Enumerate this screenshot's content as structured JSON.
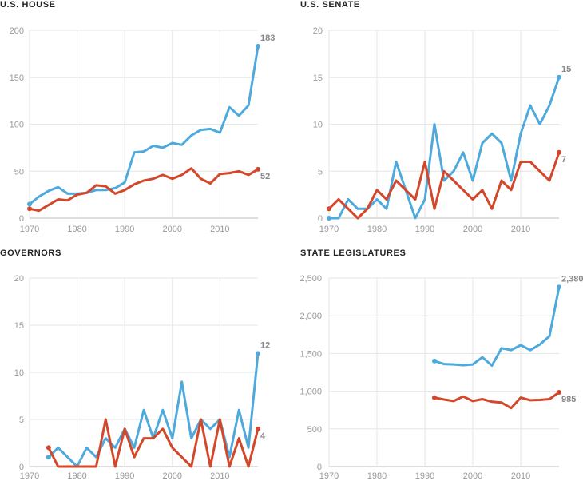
{
  "colors": {
    "blue": "#4ea9dc",
    "red": "#d3472b",
    "grid": "#e6e6e6",
    "axis": "#bdbdbd",
    "tick_text": "#999999",
    "end_label": "#888888"
  },
  "chart_data": [
    {
      "type": "line",
      "title": "U.S. HOUSE",
      "x_ticks": [
        "1970",
        "1980",
        "1990",
        "2000",
        "2010"
      ],
      "y_ticks": [
        "0",
        "50",
        "100",
        "150",
        "200"
      ],
      "xlim": [
        1970,
        2018
      ],
      "ylim": [
        0,
        200
      ],
      "series": [
        {
          "color": "blue",
          "end_label": "183",
          "x": [
            1970,
            1972,
            1974,
            1976,
            1978,
            1980,
            1982,
            1984,
            1986,
            1988,
            1990,
            1992,
            1994,
            1996,
            1998,
            2000,
            2002,
            2004,
            2006,
            2008,
            2010,
            2012,
            2014,
            2016,
            2018
          ],
          "y": [
            15,
            23,
            29,
            33,
            26,
            26,
            27,
            30,
            30,
            32,
            38,
            70,
            71,
            77,
            75,
            80,
            78,
            88,
            94,
            95,
            91,
            118,
            109,
            120,
            183
          ]
        },
        {
          "color": "red",
          "end_label": "52",
          "x": [
            1970,
            1972,
            1974,
            1976,
            1978,
            1980,
            1982,
            1984,
            1986,
            1988,
            1990,
            1992,
            1994,
            1996,
            1998,
            2000,
            2002,
            2004,
            2006,
            2008,
            2010,
            2012,
            2014,
            2016,
            2018
          ],
          "y": [
            10,
            8,
            14,
            20,
            19,
            25,
            27,
            35,
            34,
            26,
            30,
            36,
            40,
            42,
            46,
            42,
            46,
            53,
            42,
            37,
            47,
            48,
            50,
            46,
            52
          ]
        }
      ]
    },
    {
      "type": "line",
      "title": "U.S. SENATE",
      "x_ticks": [
        "1970",
        "1980",
        "1990",
        "2000",
        "2010"
      ],
      "y_ticks": [
        "0",
        "5",
        "10",
        "15",
        "20"
      ],
      "xlim": [
        1970,
        2018
      ],
      "ylim": [
        0,
        20
      ],
      "series": [
        {
          "color": "blue",
          "end_label": "15",
          "x": [
            1970,
            1972,
            1974,
            1976,
            1978,
            1980,
            1982,
            1984,
            1986,
            1988,
            1990,
            1992,
            1994,
            1996,
            1998,
            2000,
            2002,
            2004,
            2006,
            2008,
            2010,
            2012,
            2014,
            2016,
            2018
          ],
          "y": [
            0,
            0,
            2,
            1,
            1,
            2,
            1,
            6,
            3,
            0,
            2,
            10,
            4,
            5,
            7,
            4,
            8,
            9,
            8,
            4,
            9,
            12,
            10,
            12,
            15
          ]
        },
        {
          "color": "red",
          "end_label": "7",
          "x": [
            1970,
            1972,
            1974,
            1976,
            1978,
            1980,
            1982,
            1984,
            1986,
            1988,
            1990,
            1992,
            1994,
            1996,
            1998,
            2000,
            2002,
            2004,
            2006,
            2008,
            2010,
            2012,
            2014,
            2016,
            2018
          ],
          "y": [
            1,
            2,
            1,
            0,
            1,
            3,
            2,
            4,
            3,
            2,
            6,
            1,
            5,
            4,
            3,
            2,
            3,
            1,
            4,
            3,
            6,
            6,
            5,
            4,
            7
          ]
        }
      ]
    },
    {
      "type": "line",
      "title": "GOVERNORS",
      "x_ticks": [
        "1970",
        "1980",
        "1990",
        "2000",
        "2010"
      ],
      "y_ticks": [
        "0",
        "5",
        "10",
        "15",
        "20"
      ],
      "xlim": [
        1970,
        2018
      ],
      "ylim": [
        0,
        20
      ],
      "series": [
        {
          "color": "blue",
          "end_label": "12",
          "x": [
            1974,
            1976,
            1978,
            1980,
            1982,
            1984,
            1986,
            1988,
            1990,
            1992,
            1994,
            1996,
            1998,
            2000,
            2002,
            2004,
            2006,
            2008,
            2010,
            2012,
            2014,
            2016,
            2018
          ],
          "y": [
            1,
            2,
            1,
            0,
            2,
            1,
            3,
            2,
            4,
            2,
            6,
            3,
            6,
            3,
            9,
            3,
            5,
            4,
            5,
            1,
            6,
            2,
            12
          ]
        },
        {
          "color": "red",
          "end_label": "4",
          "x": [
            1974,
            1976,
            1978,
            1980,
            1982,
            1984,
            1986,
            1988,
            1990,
            1992,
            1994,
            1996,
            1998,
            2000,
            2002,
            2004,
            2006,
            2008,
            2010,
            2012,
            2014,
            2016,
            2018
          ],
          "y": [
            2,
            0,
            0,
            0,
            0,
            0,
            5,
            0,
            4,
            1,
            3,
            3,
            4,
            2,
            1,
            0,
            5,
            0,
            5,
            0,
            3,
            0,
            4
          ]
        }
      ]
    },
    {
      "type": "line",
      "title": "STATE LEGISLATURES",
      "x_ticks": [
        "1970",
        "1980",
        "1990",
        "2000",
        "2010"
      ],
      "y_ticks": [
        "0",
        "500",
        "1,000",
        "1,500",
        "2,000",
        "2,500"
      ],
      "xlim": [
        1970,
        2018
      ],
      "ylim": [
        0,
        2500
      ],
      "series": [
        {
          "color": "blue",
          "end_label": "2,380",
          "x": [
            1992,
            1994,
            1996,
            1998,
            2000,
            2002,
            2004,
            2006,
            2008,
            2010,
            2012,
            2014,
            2016,
            2018
          ],
          "y": [
            1400,
            1360,
            1355,
            1345,
            1355,
            1450,
            1340,
            1570,
            1545,
            1610,
            1545,
            1620,
            1730,
            2380
          ]
        },
        {
          "color": "red",
          "end_label": "985",
          "x": [
            1992,
            1994,
            1996,
            1998,
            2000,
            2002,
            2004,
            2006,
            2008,
            2010,
            2012,
            2014,
            2016,
            2018
          ],
          "y": [
            915,
            890,
            870,
            930,
            870,
            895,
            860,
            850,
            775,
            915,
            880,
            885,
            895,
            985
          ]
        }
      ]
    }
  ]
}
